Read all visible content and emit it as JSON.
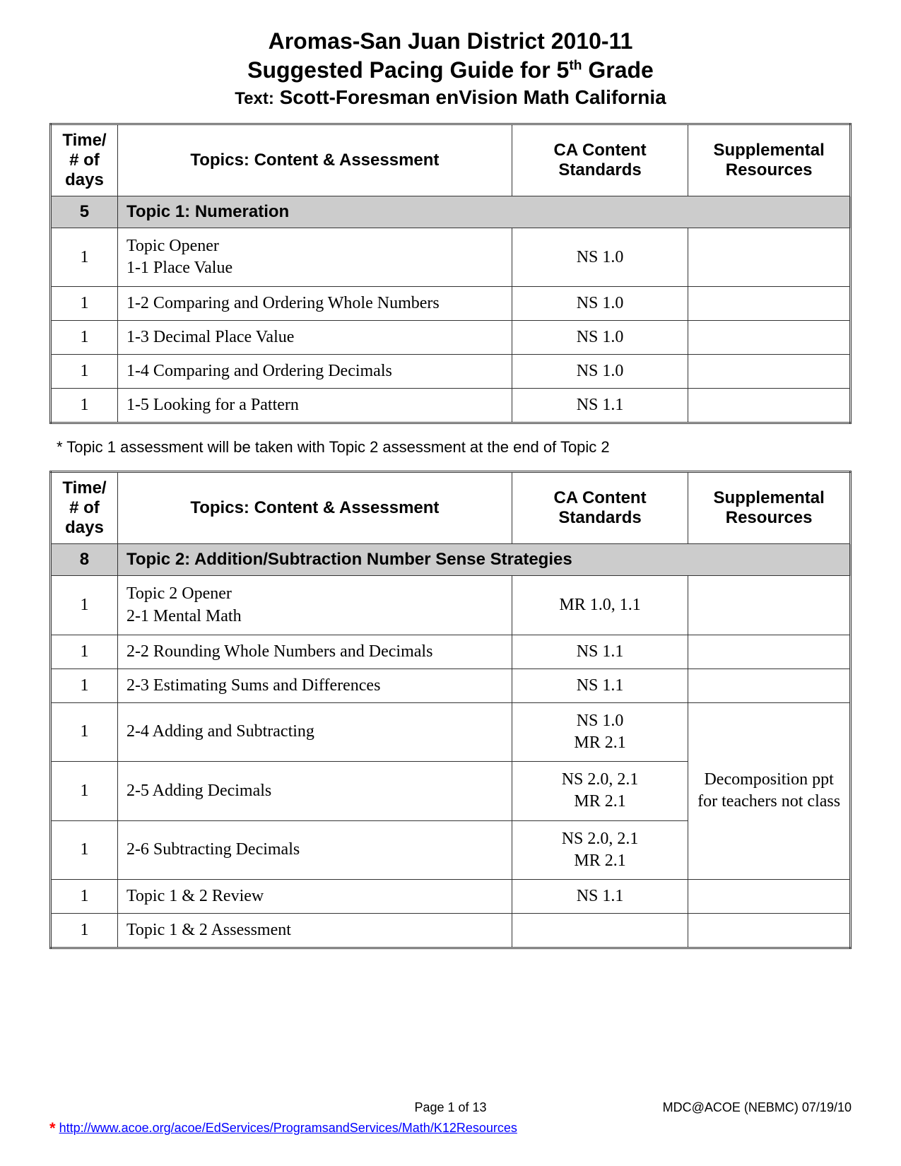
{
  "header": {
    "line1": "Aromas-San Juan District 2010-11",
    "line2_prefix": "Suggested Pacing Guide for 5",
    "line2_sup": "th",
    "line2_suffix": " Grade",
    "line3_label": "Text:",
    "line3_title": " Scott-Foresman enVision Math California"
  },
  "table_headers": {
    "days": "Time/ # of days",
    "topics": "Topics: Content & Assessment",
    "standards": "CA Content Standards",
    "resources": "Supplemental Resources"
  },
  "topic1": {
    "days": "5",
    "title": "Topic 1: Numeration",
    "rows": [
      {
        "days": "1",
        "topic": "Topic Opener\n1-1 Place Value",
        "standards": "NS 1.0",
        "resources": ""
      },
      {
        "days": "1",
        "topic": "1-2 Comparing and Ordering Whole Numbers",
        "standards": "NS 1.0",
        "resources": ""
      },
      {
        "days": "1",
        "topic": "1-3 Decimal Place Value",
        "standards": "NS 1.0",
        "resources": ""
      },
      {
        "days": "1",
        "topic": "1-4 Comparing and Ordering Decimals",
        "standards": "NS 1.0",
        "resources": ""
      },
      {
        "days": "1",
        "topic": "1-5 Looking for a Pattern",
        "standards": "NS 1.1",
        "resources": ""
      }
    ]
  },
  "note1": "* Topic 1 assessment will be taken with Topic 2 assessment at the end of Topic 2",
  "topic2": {
    "days": "8",
    "title": "Topic 2: Addition/Subtraction Number Sense Strategies",
    "rows": [
      {
        "days": "1",
        "topic": "Topic 2 Opener\n2-1 Mental Math",
        "standards": "MR 1.0,  1.1",
        "resources": ""
      },
      {
        "days": "1",
        "topic": "2-2 Rounding Whole Numbers and Decimals",
        "standards": "NS 1.1",
        "resources": ""
      },
      {
        "days": "1",
        "topic": "2-3 Estimating Sums and Differences",
        "standards": "NS 1.1",
        "resources": ""
      },
      {
        "days": "1",
        "topic": "2-4 Adding and Subtracting",
        "standards": "NS 1.0\nMR 2.1",
        "resources": ""
      },
      {
        "days": "1",
        "topic": "2-5 Adding Decimals",
        "standards": "NS 2.0, 2.1\nMR 2.1",
        "resources": ""
      },
      {
        "days": "1",
        "topic": "2-6 Subtracting Decimals",
        "standards": "NS 2.0, 2.1\nMR 2.1",
        "resources": ""
      },
      {
        "days": "1",
        "topic": "Topic 1 & 2 Review",
        "standards": "NS 1.1",
        "resources": ""
      },
      {
        "days": "1",
        "topic": "Topic 1 & 2 Assessment",
        "standards": "",
        "resources": ""
      }
    ],
    "merged_resource": "Decomposition ppt for teachers not class"
  },
  "footer": {
    "page": "Page 1 of 13",
    "org": "MDC@ACOE (NEBMC) 07/19/10",
    "asterisk": "*",
    "link_text": "http://www.acoe.org/acoe/EdServices/ProgramsandServices/Math/K12Resources"
  },
  "colors": {
    "topic_header_bg": "#cccccc",
    "link_color": "#0000ff",
    "asterisk_color": "#ff0000",
    "border_color": "#333333",
    "background": "#ffffff"
  }
}
